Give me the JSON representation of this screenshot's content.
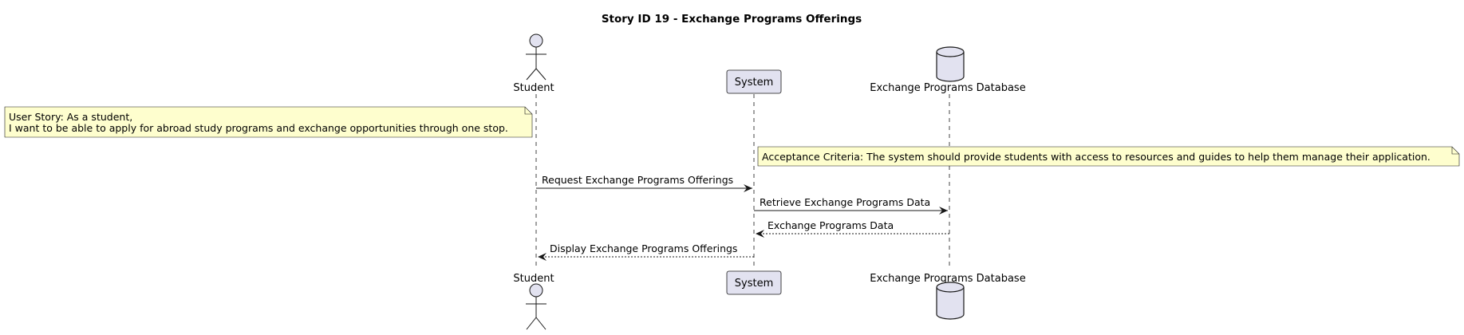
{
  "title": "Story ID 19 - Exchange Programs Offerings",
  "colors": {
    "participant_fill": "#e2e2f0",
    "participant_stroke": "#181818",
    "note_fill": "#fefece",
    "note_stroke": "#181818",
    "lifeline": "#181818"
  },
  "participants": {
    "student": {
      "label": "Student",
      "shape": "actor"
    },
    "system": {
      "label": "System",
      "shape": "box"
    },
    "database": {
      "label": "Exchange Programs Database",
      "shape": "database"
    }
  },
  "notes": {
    "user_story": {
      "line1": "User Story: As a student,",
      "line2": "I want to be able to apply for abroad study programs and exchange opportunities through one stop."
    },
    "acceptance": {
      "line1": "Acceptance Criteria: The system should provide students with access to resources and guides to help them manage their application."
    }
  },
  "messages": [
    {
      "label": "Request Exchange Programs Offerings",
      "from": "Student",
      "to": "System",
      "style": "solid"
    },
    {
      "label": "Retrieve Exchange Programs Data",
      "from": "System",
      "to": "Exchange Programs Database",
      "style": "solid"
    },
    {
      "label": "Exchange Programs Data",
      "from": "Exchange Programs Database",
      "to": "System",
      "style": "dashed"
    },
    {
      "label": "Display Exchange Programs Offerings",
      "from": "System",
      "to": "Student",
      "style": "dashed"
    }
  ]
}
